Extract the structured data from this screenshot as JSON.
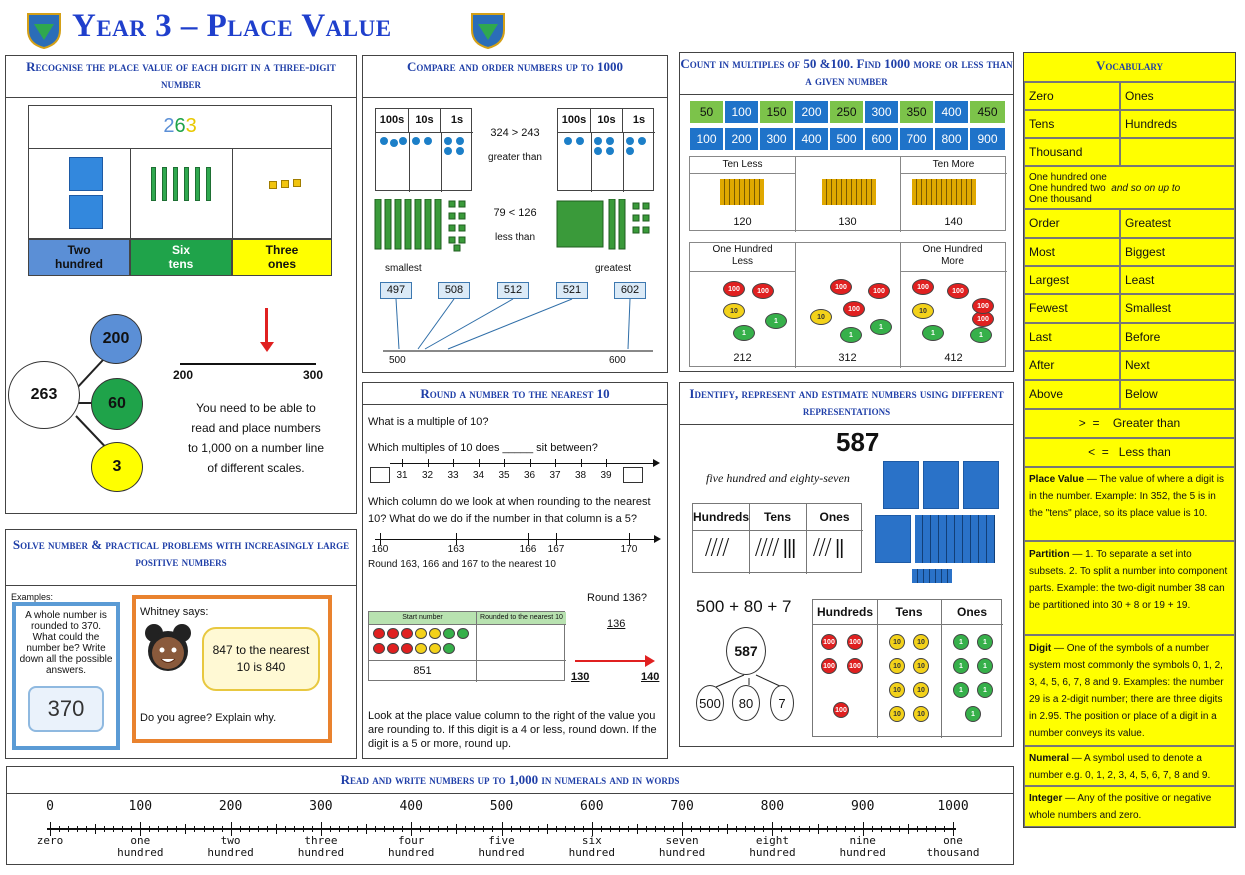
{
  "title": "Year 3 – Place Value",
  "p1": {
    "header": "Recognise the place value of each digit in a three-digit number",
    "digits": [
      "2",
      "6",
      "3"
    ],
    "labels": [
      [
        "Two",
        "hundred"
      ],
      [
        "Six",
        "tens"
      ],
      [
        "Three",
        "ones"
      ]
    ],
    "whole": "263",
    "parts": [
      "200",
      "60",
      "3"
    ],
    "line_start": "200",
    "line_end": "300",
    "note": "You need to be able to read and place numbers to 1,000 on a number line of different scales.",
    "colors": {
      "hundreds": "#5b8fd6",
      "tens": "#1fa34a",
      "ones": "#ffff00"
    }
  },
  "p2": {
    "header": "Compare and order numbers up to 1000",
    "cols": [
      "100s",
      "10s",
      "1s"
    ],
    "cmp1": "324 > 243",
    "cmp1_word": "greater than",
    "cmp2": "79 < 126",
    "cmp2_word": "less than",
    "smallest": "smallest",
    "greatest": "greatest",
    "boxes": [
      "497",
      "508",
      "512",
      "521",
      "602"
    ],
    "line_start": "500",
    "line_end": "600"
  },
  "p3": {
    "header": "Count in multiples of 50 &100. Find 1000 more or less than a given number",
    "row1": [
      "50",
      "100",
      "150",
      "200",
      "250",
      "300",
      "350",
      "400",
      "450"
    ],
    "row2": [
      "100",
      "200",
      "300",
      "400",
      "500",
      "600",
      "700",
      "800",
      "900"
    ],
    "ten_less": "Ten Less",
    "ten_more": "Ten More",
    "tens_vals": [
      "120",
      "130",
      "140"
    ],
    "hundred_less": "One Hundred Less",
    "hundred_more": "One Hundred More",
    "hund_vals": [
      "212",
      "312",
      "412"
    ]
  },
  "vocab": {
    "header": "Vocabulary",
    "pairs": [
      [
        "Zero",
        "Ones"
      ],
      [
        "Tens",
        "Hundreds"
      ],
      [
        "Thousand",
        ""
      ]
    ],
    "hundred_one": "One hundred one",
    "hundred_two": "One hundred two",
    "and_so_on": "and so on up to",
    "one_thousand": "One thousand",
    "pairs2": [
      [
        "Order",
        "Greatest"
      ],
      [
        "Most",
        "Biggest"
      ],
      [
        "Largest",
        "Least"
      ],
      [
        "Fewest",
        "Smallest"
      ],
      [
        "Last",
        "Before"
      ],
      [
        "After",
        "Next"
      ],
      [
        "Above",
        "Below"
      ]
    ],
    "gt": ">  =    Greater than",
    "lt": "<  =   Less than",
    "defs": [
      {
        "term": "Place Value",
        "text": "The value of where a digit is in the number. Example: In 352, the 5 is in the \"tens\" place, so its place value is 10."
      },
      {
        "term": "Partition",
        "text": "1. To separate a set into subsets. 2. To split a number into component parts. Example: the two-digit number 38 can be partitioned into 30 + 8 or 19 + 19."
      },
      {
        "term": "Digit",
        "text": "One of the symbols of a number system most commonly the symbols 0, 1, 2, 3, 4, 5, 6, 7, 8 and 9. Examples: the number 29 is a 2-digit number; there are three digits in 2.95. The position or place of a digit in a number conveys its value."
      },
      {
        "term": "Numeral",
        "text": "A symbol used to denote a number e.g. 0, 1, 2, 3, 4, 5, 6, 7, 8 and 9."
      },
      {
        "term": "Integer",
        "text": "Any of the positive or negative whole numbers and zero."
      }
    ]
  },
  "p4": {
    "header": "Round a number to the nearest 10",
    "q1": "What is a multiple of 10?",
    "q2": "Which multiples of 10 does _____ sit between?",
    "nl1": [
      "31",
      "32",
      "33",
      "34",
      "35",
      "36",
      "37",
      "38",
      "39"
    ],
    "q3": "Which column do we look at when rounding to the nearest 10? What do we do if the number in that column is a 5?",
    "nl2": [
      "160",
      "163",
      "166",
      "167",
      "170"
    ],
    "round_note": "Round 163, 166 and 167 to the nearest 10",
    "tbl_h1": "Start number",
    "tbl_h2": "Rounded to the nearest 10",
    "start_val": "851",
    "round136": "Round 136?",
    "r136": "136",
    "r130": "130",
    "r140": "140",
    "rule": "Look at the place value column to the right of the value you are rounding to. If this digit is a 4 or less, round down. If the digit is a 5 or more, round up."
  },
  "p5": {
    "header": "Identify, represent and estimate numbers using different representations",
    "num": "587",
    "words": "five hundred and eighty-seven",
    "cols": [
      "Hundreds",
      "Tens",
      "Ones"
    ],
    "expr": "500 + 80 + 7",
    "whole": "587",
    "parts": [
      "500",
      "80",
      "7"
    ]
  },
  "p6": {
    "header": "Solve number & practical problems with increasingly large positive numbers",
    "examples": "Examples:",
    "q": "A whole number is rounded to 370. What could the number be? Write down all the possible answers.",
    "val": "370",
    "whitney": "Whitney says:",
    "speech": "847 to the nearest 10 is 840",
    "ask": "Do you agree? Explain why."
  },
  "p7": {
    "header": "Read and write numbers up to 1,000 in numerals and in words",
    "nums": [
      "0",
      "100",
      "200",
      "300",
      "400",
      "500",
      "600",
      "700",
      "800",
      "900",
      "1000"
    ],
    "words": [
      [
        "zero",
        ""
      ],
      [
        "one",
        "hundred"
      ],
      [
        "two",
        "hundred"
      ],
      [
        "three",
        "hundred"
      ],
      [
        "four",
        "hundred"
      ],
      [
        "five",
        "hundred"
      ],
      [
        "six",
        "hundred"
      ],
      [
        "seven",
        "hundred"
      ],
      [
        "eight",
        "hundred"
      ],
      [
        "nine",
        "hundred"
      ],
      [
        "one",
        "thousand"
      ]
    ]
  }
}
